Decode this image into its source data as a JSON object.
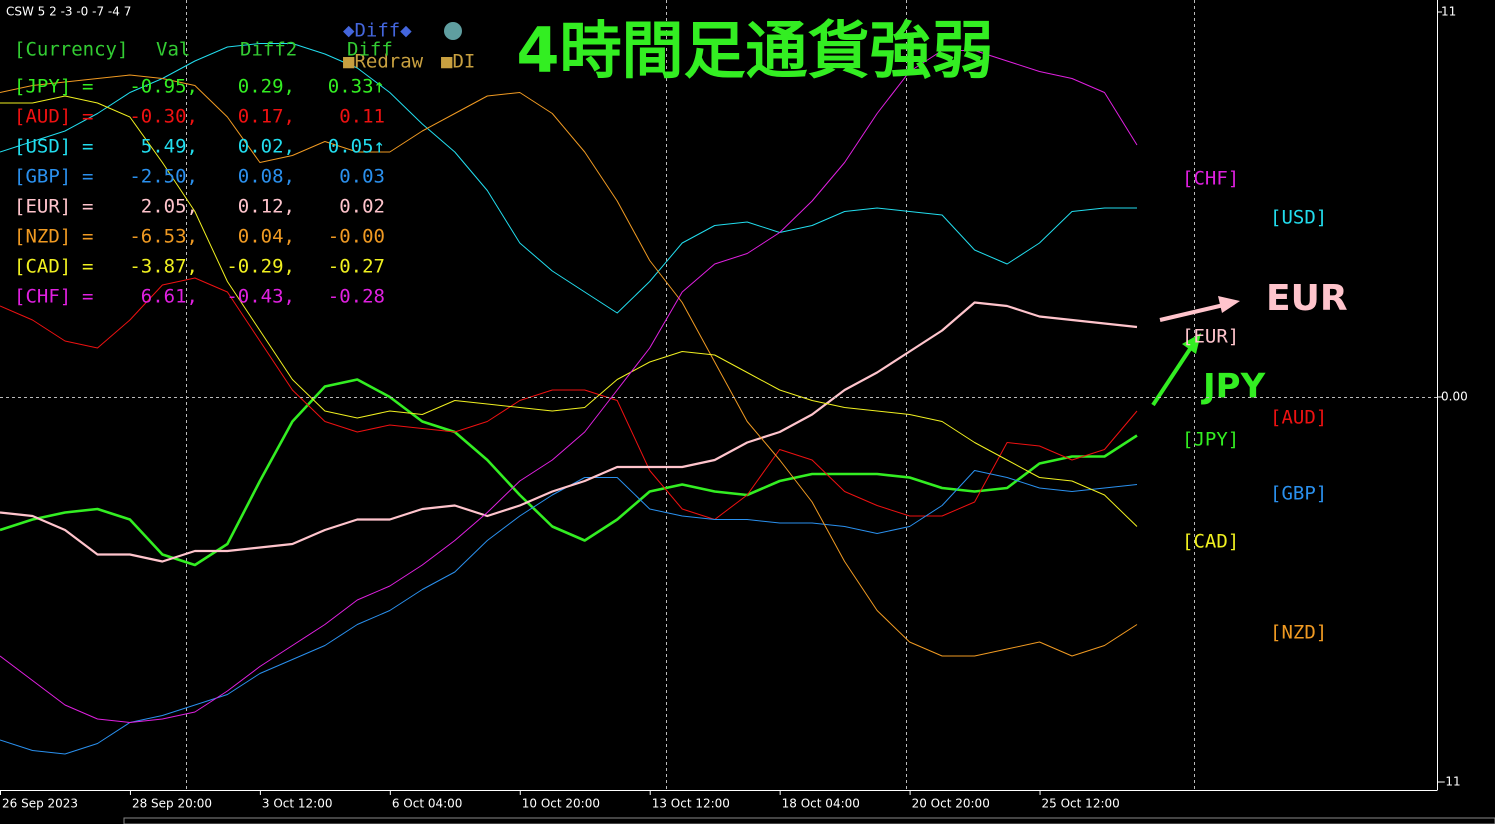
{
  "window_label": "CSW 5 2 -3 -0 -7 -4 7",
  "buttons": {
    "diff": "◆Diff◆",
    "redraw": "■Redraw",
    "di": "■DI"
  },
  "panel": {
    "header": [
      "[Currency]",
      "Val",
      "Diff2",
      "Diff"
    ],
    "rows": [
      [
        "=",
        "-0.95,",
        "0.29,",
        "0.33↑"
      ],
      [
        "=",
        "-0.30,",
        "0.17,",
        "0.11"
      ],
      [
        "=",
        "5.49,",
        "0.02,",
        "0.05↑"
      ],
      [
        "=",
        "-2.50,",
        "0.08,",
        "0.03"
      ],
      [
        "=",
        "2.05,",
        "0.12,",
        "0.02"
      ],
      [
        "=",
        "-6.53,",
        "0.04,",
        "-0.00"
      ],
      [
        "=",
        "-3.87,",
        "-0.29,",
        "-0.27"
      ],
      [
        "=",
        "6.61,",
        "-0.43,",
        "-0.28"
      ]
    ]
  },
  "chart_data": {
    "type": "line",
    "title": "4時間足通貨強弱",
    "annotations": [
      "EUR",
      "JPY"
    ],
    "categories": [
      "26 Sep 2023",
      null,
      null,
      null,
      "28 Sep 20:00",
      null,
      null,
      null,
      "3 Oct 12:00",
      null,
      null,
      null,
      "6 Oct 04:00",
      null,
      null,
      null,
      "10 Oct 20:00",
      null,
      null,
      null,
      "13 Oct 12:00",
      null,
      null,
      null,
      "18 Oct 04:00",
      null,
      null,
      null,
      "20 Oct 20:00",
      null,
      null,
      null,
      "25 Oct 12:00",
      null,
      null,
      null
    ],
    "ylim": [
      -11,
      11
    ],
    "yticks": [
      11,
      {
        "value": 0,
        "label": "0.00"
      },
      -11
    ],
    "grid": true,
    "series": [
      {
        "name": "[JPY]",
        "color": "#33ee22",
        "values": [
          -3.8,
          -3.5,
          -3.3,
          -3.2,
          -3.5,
          -4.5,
          -4.8,
          -4.2,
          -2.4,
          -0.7,
          0.3,
          0.5,
          0.0,
          -0.7,
          -1.0,
          -1.8,
          -2.8,
          -3.7,
          -4.1,
          -3.5,
          -2.7,
          -2.5,
          -2.7,
          -2.8,
          -2.4,
          -2.2,
          -2.2,
          -2.2,
          -2.3,
          -2.6,
          -2.7,
          -2.6,
          -1.9,
          -1.7,
          -1.7,
          -1.1
        ]
      },
      {
        "name": "[AUD]",
        "color": "#ee1111",
        "values": [
          2.6,
          2.2,
          1.6,
          1.4,
          2.2,
          3.2,
          3.4,
          3.0,
          1.6,
          0.2,
          -0.7,
          -1.0,
          -0.8,
          -0.9,
          -1.0,
          -0.7,
          -0.1,
          0.2,
          0.2,
          -0.1,
          -2.1,
          -3.2,
          -3.5,
          -2.8,
          -1.5,
          -1.8,
          -2.7,
          -3.1,
          -3.4,
          -3.4,
          -3.0,
          -1.3,
          -1.4,
          -1.8,
          -1.5,
          -0.4
        ]
      },
      {
        "name": "[USD]",
        "color": "#22ddee",
        "values": [
          7.0,
          7.3,
          7.6,
          8.1,
          8.7,
          9.1,
          9.6,
          10.0,
          10.1,
          10.1,
          9.8,
          9.4,
          8.7,
          7.8,
          7.0,
          5.9,
          4.4,
          3.6,
          3.0,
          2.4,
          3.3,
          4.4,
          4.9,
          5.0,
          4.7,
          4.9,
          5.3,
          5.4,
          5.3,
          5.2,
          4.2,
          3.8,
          4.4,
          5.3,
          5.4,
          5.4
        ]
      },
      {
        "name": "[GBP]",
        "color": "#2a90ee",
        "values": [
          -9.8,
          -10.1,
          -10.2,
          -9.9,
          -9.3,
          -9.1,
          -8.8,
          -8.5,
          -7.9,
          -7.5,
          -7.1,
          -6.5,
          -6.1,
          -5.5,
          -5.0,
          -4.1,
          -3.4,
          -2.8,
          -2.3,
          -2.3,
          -3.2,
          -3.4,
          -3.5,
          -3.5,
          -3.6,
          -3.6,
          -3.7,
          -3.9,
          -3.7,
          -3.1,
          -2.1,
          -2.3,
          -2.6,
          -2.7,
          -2.6,
          -2.5
        ]
      },
      {
        "name": "[EUR]",
        "color": "#ffc4cc",
        "values": [
          -3.3,
          -3.4,
          -3.8,
          -4.5,
          -4.5,
          -4.7,
          -4.4,
          -4.4,
          -4.3,
          -4.2,
          -3.8,
          -3.5,
          -3.5,
          -3.2,
          -3.1,
          -3.4,
          -3.1,
          -2.7,
          -2.4,
          -2.0,
          -2.0,
          -2.0,
          -1.8,
          -1.3,
          -1.0,
          -0.5,
          0.2,
          0.7,
          1.3,
          1.9,
          2.7,
          2.6,
          2.3,
          2.2,
          2.1,
          2.0
        ]
      },
      {
        "name": "[NZD]",
        "color": "#f09a22",
        "values": [
          8.7,
          8.9,
          9.0,
          9.1,
          9.2,
          9.1,
          8.9,
          8.0,
          6.7,
          6.9,
          7.3,
          7.0,
          7.0,
          7.6,
          8.1,
          8.6,
          8.7,
          8.1,
          7.0,
          5.6,
          3.9,
          2.7,
          1.0,
          -0.7,
          -1.8,
          -3.0,
          -4.7,
          -6.1,
          -7.0,
          -7.4,
          -7.4,
          -7.2,
          -7.0,
          -7.4,
          -7.1,
          -6.5
        ]
      },
      {
        "name": "[CAD]",
        "color": "#f0f020",
        "values": [
          8.4,
          8.4,
          8.6,
          8.4,
          8.0,
          6.7,
          5.3,
          3.3,
          1.9,
          0.5,
          -0.4,
          -0.6,
          -0.4,
          -0.5,
          -0.1,
          -0.2,
          -0.3,
          -0.4,
          -0.3,
          0.5,
          1.0,
          1.3,
          1.2,
          0.7,
          0.2,
          -0.1,
          -0.3,
          -0.4,
          -0.5,
          -0.7,
          -1.3,
          -1.8,
          -2.3,
          -2.4,
          -2.8,
          -3.7
        ]
      },
      {
        "name": "[CHF]",
        "color": "#e020e0",
        "values": [
          -7.4,
          -8.1,
          -8.8,
          -9.2,
          -9.3,
          -9.2,
          -9.0,
          -8.4,
          -7.7,
          -7.1,
          -6.5,
          -5.8,
          -5.4,
          -4.8,
          -4.1,
          -3.3,
          -2.4,
          -1.8,
          -1.0,
          0.2,
          1.4,
          3.0,
          3.8,
          4.1,
          4.7,
          5.6,
          6.7,
          8.1,
          9.3,
          9.9,
          9.9,
          9.6,
          9.3,
          9.1,
          8.7,
          7.2
        ]
      }
    ]
  }
}
